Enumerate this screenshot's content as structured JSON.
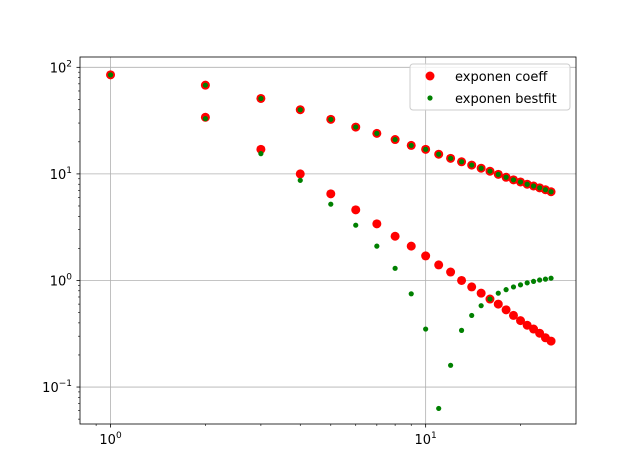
{
  "chart_data": {
    "type": "scatter",
    "title": "",
    "xlabel": "",
    "ylabel": "",
    "xscale": "log",
    "yscale": "log",
    "xlim": [
      0.8,
      30
    ],
    "ylim": [
      0.045,
      125
    ],
    "grid": true,
    "legend_position": "top-right",
    "x_ticks": [
      {
        "value": 1,
        "base": "10",
        "exp": "0"
      },
      {
        "value": 10,
        "base": "10",
        "exp": "1"
      }
    ],
    "y_ticks": [
      {
        "value": 0.1,
        "base": "10",
        "exp": "−1"
      },
      {
        "value": 1,
        "base": "10",
        "exp": "0"
      },
      {
        "value": 10,
        "base": "10",
        "exp": "1"
      },
      {
        "value": 100,
        "base": "10",
        "exp": "2"
      }
    ],
    "series": [
      {
        "name": "exponen coeff",
        "color": "#ff0000",
        "marker": "large-dot",
        "x": [
          1,
          2,
          3,
          4,
          5,
          6,
          7,
          8,
          9,
          10,
          11,
          12,
          13,
          14,
          15,
          16,
          17,
          18,
          19,
          20,
          21,
          22,
          23,
          24,
          25,
          2,
          3,
          4,
          5,
          6,
          7,
          8,
          9,
          10,
          11,
          12,
          13,
          14,
          15,
          16,
          17,
          18,
          19,
          20,
          21,
          22,
          23,
          24,
          25
        ],
        "y": [
          85,
          68,
          51,
          40,
          32.5,
          27.5,
          24,
          21,
          18.5,
          17,
          15.3,
          14,
          13,
          12.1,
          11.3,
          10.6,
          9.9,
          9.3,
          8.8,
          8.4,
          8.0,
          7.7,
          7.4,
          7.1,
          6.8,
          34,
          17,
          10,
          6.5,
          4.6,
          3.4,
          2.6,
          2.1,
          1.7,
          1.4,
          1.2,
          1.0,
          0.87,
          0.76,
          0.67,
          0.6,
          0.53,
          0.47,
          0.42,
          0.38,
          0.35,
          0.32,
          0.29,
          0.27
        ]
      },
      {
        "name": "exponen bestfit",
        "color": "#008000",
        "marker": "small-dot",
        "x": [
          1,
          2,
          3,
          4,
          5,
          6,
          7,
          8,
          9,
          10,
          11,
          12,
          13,
          14,
          15,
          16,
          17,
          18,
          19,
          20,
          21,
          22,
          23,
          24,
          25,
          2,
          3,
          4,
          5,
          6,
          7,
          8,
          9,
          10,
          11,
          12,
          13,
          14,
          15,
          16,
          17,
          18,
          19,
          20,
          21,
          22,
          23,
          24,
          25
        ],
        "y": [
          85,
          68,
          51,
          40,
          32.5,
          27.5,
          24,
          21,
          18.5,
          17,
          15.3,
          14,
          13,
          12.1,
          11.3,
          10.6,
          9.9,
          9.3,
          8.8,
          8.4,
          8.0,
          7.7,
          7.4,
          7.1,
          6.8,
          33,
          15.5,
          8.7,
          5.2,
          3.3,
          2.1,
          1.3,
          0.75,
          0.35,
          0.063,
          0.16,
          0.34,
          0.47,
          0.58,
          0.67,
          0.76,
          0.82,
          0.87,
          0.91,
          0.95,
          0.98,
          1.01,
          1.03,
          1.05
        ]
      }
    ]
  }
}
